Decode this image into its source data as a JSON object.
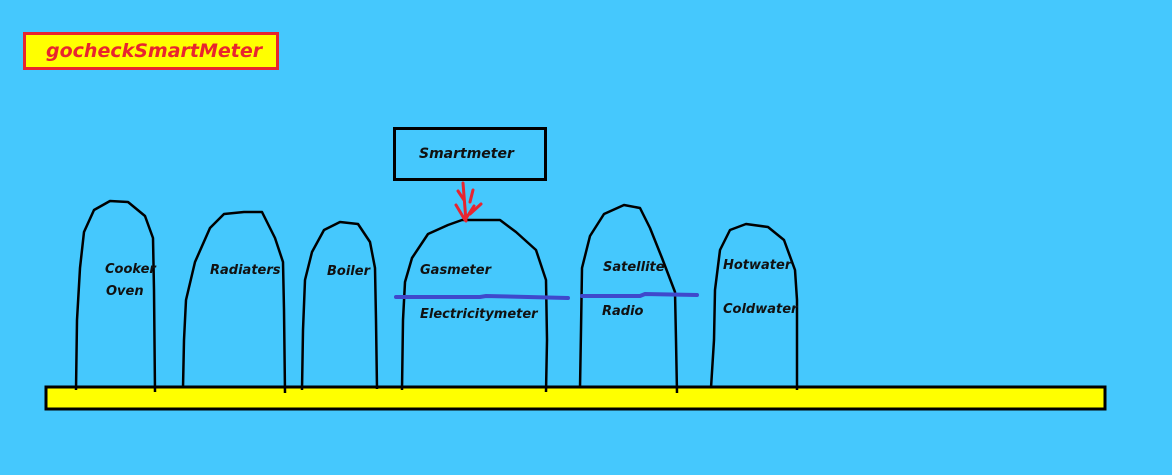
{
  "title": "gocheckSmartMeter",
  "smartmeter": "Smartmeter",
  "appliances": [
    {
      "id": "cooker",
      "labels": [
        "Cooker",
        "Oven"
      ]
    },
    {
      "id": "radiators",
      "labels": [
        "Radiaters"
      ]
    },
    {
      "id": "boiler",
      "labels": [
        "Boiler"
      ]
    },
    {
      "id": "meters",
      "labels": [
        "Gasmeter",
        "Electricitymeter"
      ]
    },
    {
      "id": "satellite",
      "labels": [
        "Satellite",
        "Radio"
      ]
    },
    {
      "id": "water",
      "labels": [
        "Hotwater",
        "Coldwater"
      ]
    }
  ],
  "colors": {
    "background": "#45c8fd",
    "floor": "#ffff00",
    "title_border": "#e8242f",
    "arrow": "#e8242f",
    "divider": "#3f48cc",
    "outline": "#000000"
  }
}
